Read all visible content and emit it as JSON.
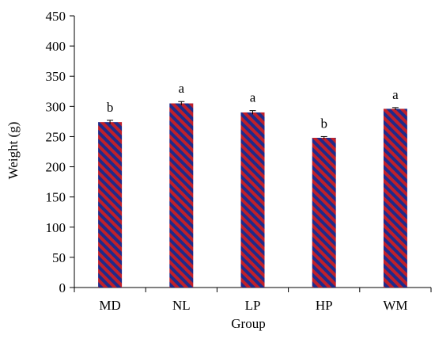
{
  "chart_data": {
    "type": "bar",
    "title": "",
    "xlabel": "Group",
    "ylabel": "Weight (g)",
    "ylim": [
      0,
      450
    ],
    "yticks": [
      0,
      50,
      100,
      150,
      200,
      250,
      300,
      350,
      400,
      450
    ],
    "grid": false,
    "legend": "none",
    "categories": [
      "MD",
      "NL",
      "LP",
      "HP",
      "WM"
    ],
    "values": [
      274,
      305,
      290,
      248,
      296
    ],
    "errors": [
      3,
      3,
      3,
      2,
      2
    ],
    "significance": [
      "b",
      "a",
      "a",
      "b",
      "a"
    ],
    "bar_pattern": "diagonal-stripes",
    "colors": {
      "stripe_a": "#C0202A",
      "stripe_b": "#1F2A8A",
      "axis": "#000000"
    }
  }
}
